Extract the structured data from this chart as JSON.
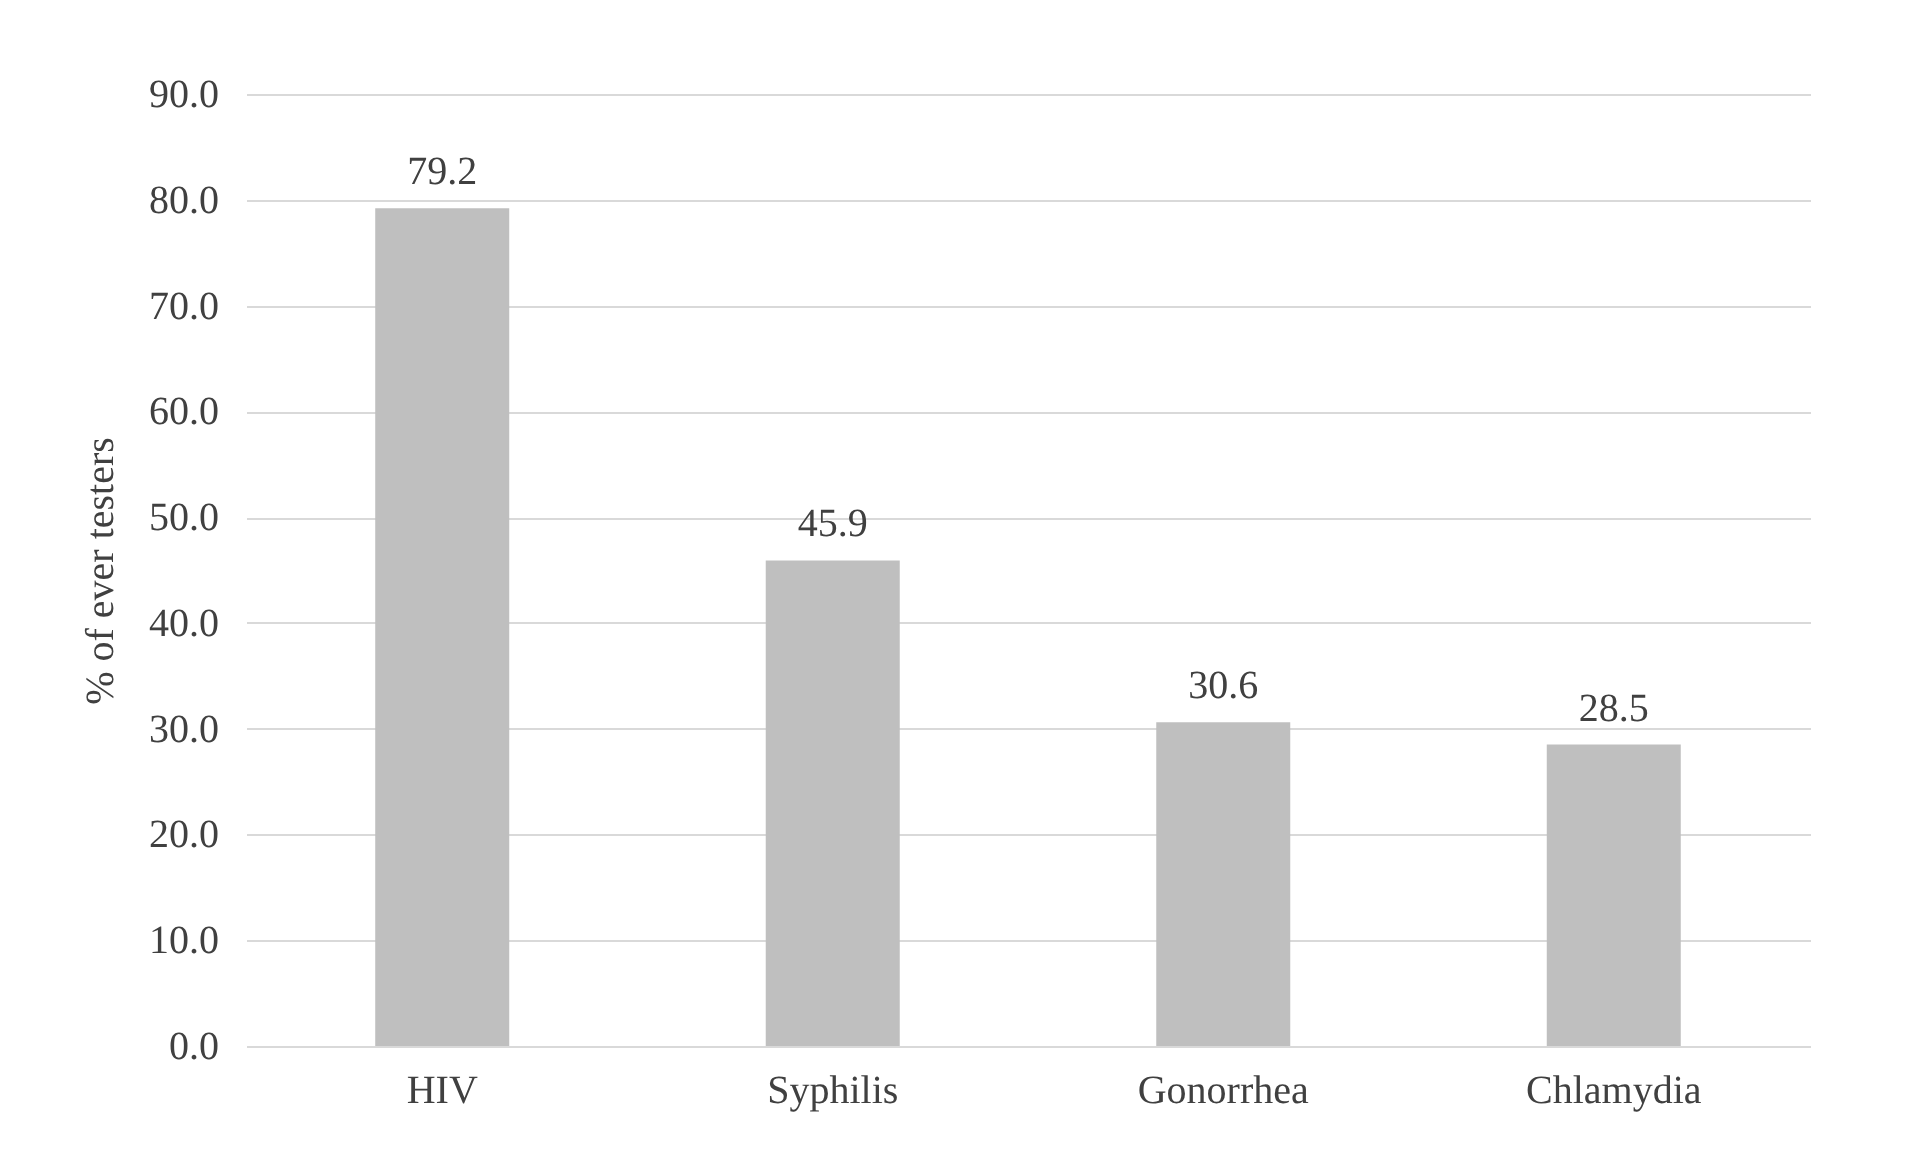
{
  "chart_data": {
    "type": "bar",
    "ylabel": "% of ever testers",
    "categories": [
      "HIV",
      "Syphilis",
      "Gonorrhea",
      "Chlamydia"
    ],
    "values": [
      79.2,
      45.9,
      30.6,
      28.5
    ],
    "color": "#bfbfbf",
    "ylim": [
      0,
      90
    ],
    "yticks": [
      {
        "value": 0,
        "label": "0.0"
      },
      {
        "value": 10,
        "label": "10.0"
      },
      {
        "value": 20,
        "label": "20.0"
      },
      {
        "value": 30,
        "label": "30.0"
      },
      {
        "value": 40,
        "label": "40.0"
      },
      {
        "value": 50,
        "label": "50.0"
      },
      {
        "value": 60,
        "label": "60.0"
      },
      {
        "value": 70,
        "label": "70.0"
      },
      {
        "value": 80,
        "label": "80.0"
      },
      {
        "value": 90,
        "label": "90.0"
      }
    ],
    "grid": "y",
    "data_labels": true
  }
}
